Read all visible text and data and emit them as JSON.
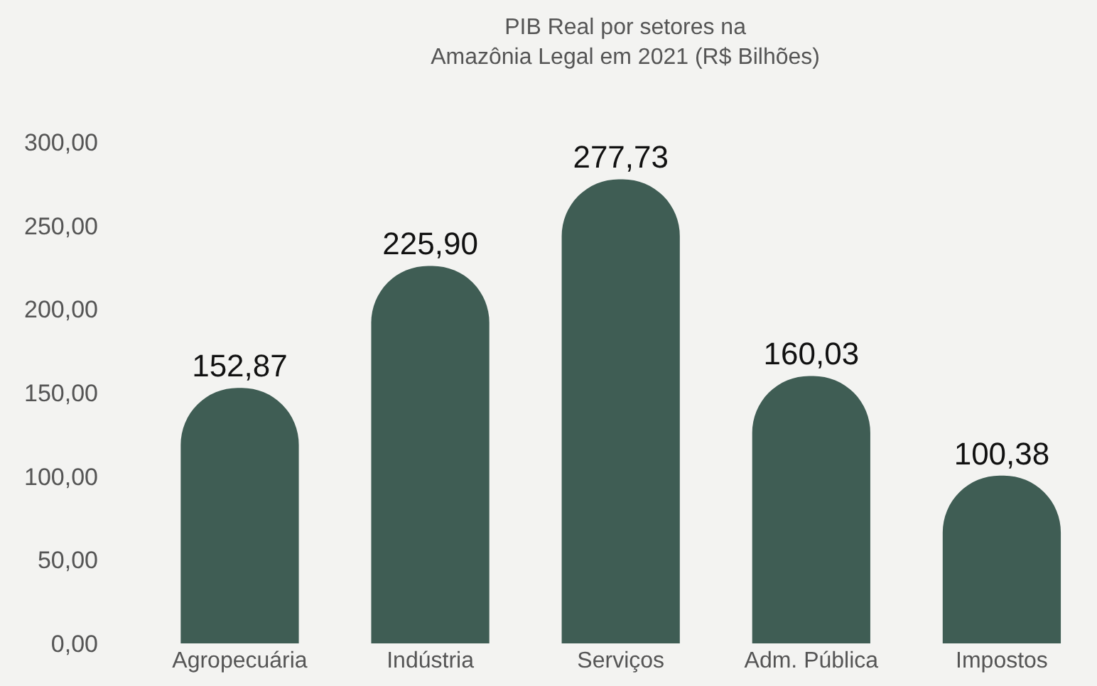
{
  "chart_data": {
    "type": "bar",
    "title": "PIB Real por setores na\nAmazônia Legal em 2021 (R$ Bilhões)",
    "categories": [
      "Agropecuária",
      "Indústria",
      "Serviços",
      "Adm. Pública",
      "Impostos"
    ],
    "values": [
      152.87,
      225.9,
      277.73,
      160.03,
      100.38
    ],
    "value_labels": [
      "152,87",
      "225,90",
      "277,73",
      "160,03",
      "100,38"
    ],
    "color": "#3f5d54",
    "ylim": [
      0,
      300
    ],
    "yticks": [
      {
        "value": 0,
        "label": "0,00"
      },
      {
        "value": 50,
        "label": "50,00"
      },
      {
        "value": 100,
        "label": "100,00"
      },
      {
        "value": 150,
        "label": "150,00"
      },
      {
        "value": 200,
        "label": "200,00"
      },
      {
        "value": 250,
        "label": "250,00"
      },
      {
        "value": 300,
        "label": "300,00"
      }
    ],
    "grid": false
  }
}
